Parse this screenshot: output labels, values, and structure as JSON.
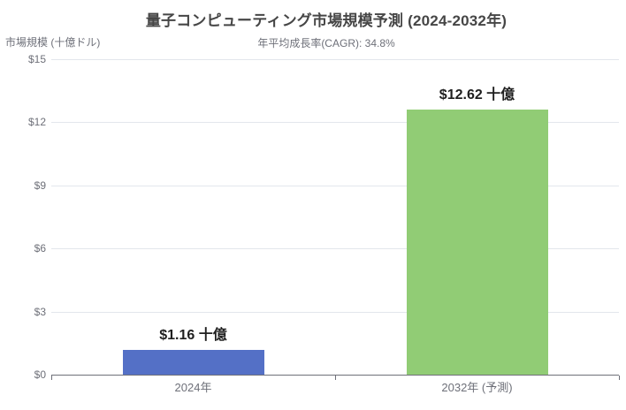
{
  "chart_data": {
    "type": "bar",
    "title": "量子コンピューティング市場規模予測 (2024-2032年)",
    "subtitle": "年平均成長率(CAGR): 34.8%",
    "ylabel": "市場規模 (十億ドル)",
    "xlabel": "",
    "categories": [
      "2024年",
      "2032年 (予測)"
    ],
    "values": [
      1.16,
      12.62
    ],
    "value_labels": [
      "$1.16 十億",
      "$12.62 十億"
    ],
    "bar_colors": [
      "#5470c6",
      "#91cc75"
    ],
    "ylim": [
      0,
      15
    ],
    "ytick_step": 3,
    "ytick_labels": [
      "$0",
      "$3",
      "$6",
      "$9",
      "$12",
      "$15"
    ],
    "grid": true,
    "legend": "none",
    "colors": {
      "title": "#464646",
      "subtitle": "#6e7079",
      "axis_line": "#6e7079",
      "tick_label": "#6e7079",
      "grid_line": "#e3e6ec",
      "value_label": "#1f1f1f",
      "background": "#ffffff"
    }
  }
}
